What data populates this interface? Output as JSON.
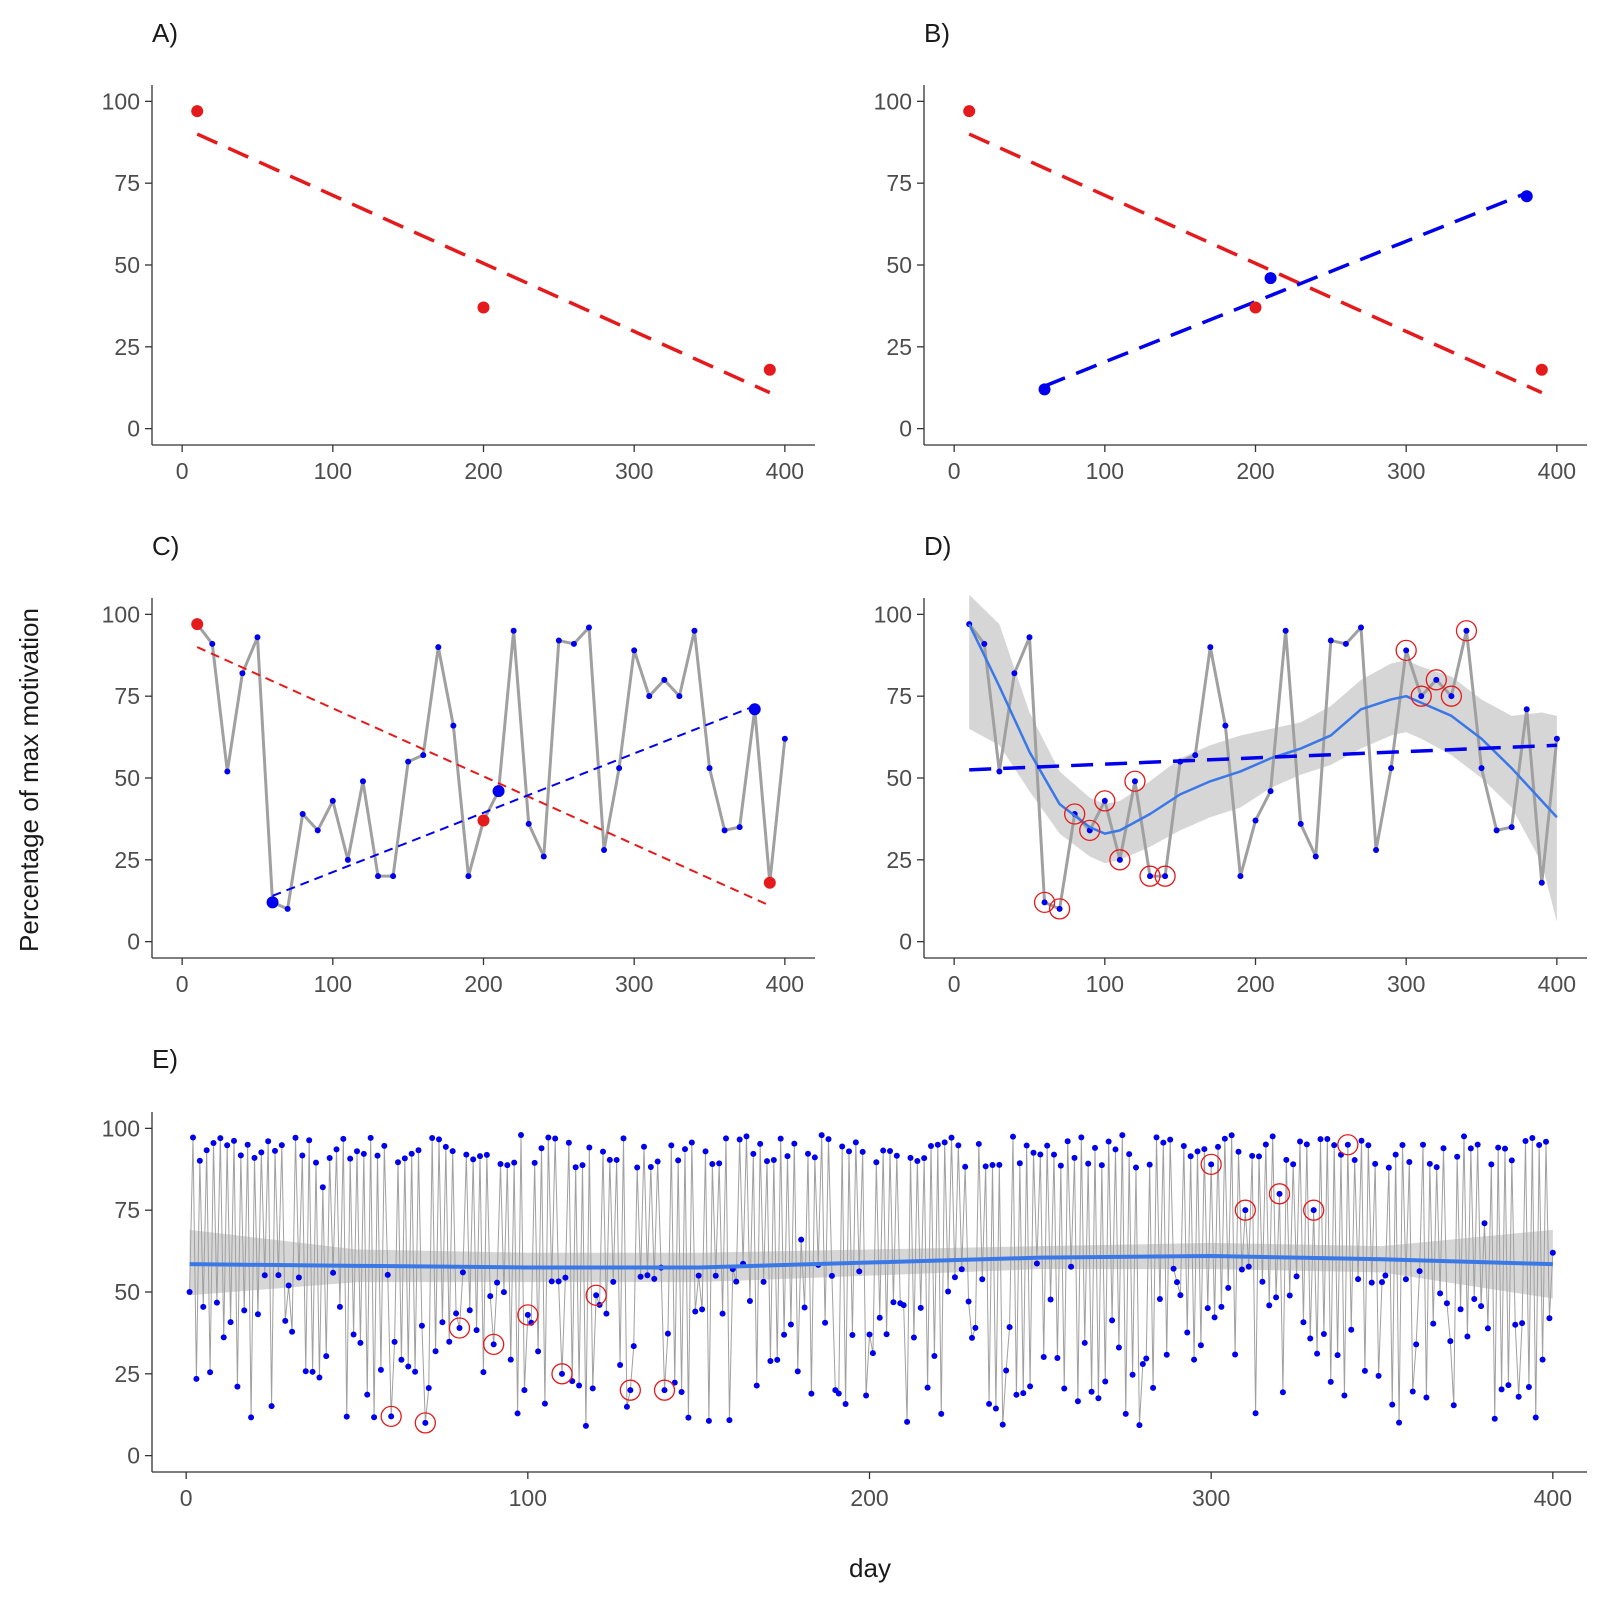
{
  "figure": {
    "ylabel": "Percentage of max motivation",
    "xlabel": "day",
    "colors": {
      "red": "#e41a1c",
      "blue": "#0000ee",
      "smooth": "#3b78e7",
      "series_grey": "#a0a0a0",
      "band_grey": "#c8c8c8",
      "axis": "#333333",
      "tick_text": "#4d4d4d"
    }
  },
  "chart_data": [
    {
      "panel": "A)",
      "type": "scatter",
      "xlim": [
        -20,
        420
      ],
      "ylim": [
        -5,
        105
      ],
      "xticks": [
        "0",
        "100",
        "200",
        "300",
        "400"
      ],
      "yticks": [
        "0",
        "25",
        "50",
        "75",
        "100"
      ],
      "series": [
        {
          "name": "red_points",
          "kind": "points",
          "color": "red",
          "x": [
            10,
            200,
            390
          ],
          "y": [
            97,
            37,
            18
          ]
        },
        {
          "name": "red_trend",
          "kind": "dashed_line",
          "color": "red",
          "x": [
            10,
            390
          ],
          "y": [
            90,
            11
          ]
        }
      ]
    },
    {
      "panel": "B)",
      "type": "scatter",
      "xlim": [
        -20,
        420
      ],
      "ylim": [
        -5,
        105
      ],
      "xticks": [
        "0",
        "100",
        "200",
        "300",
        "400"
      ],
      "yticks": [
        "0",
        "25",
        "50",
        "75",
        "100"
      ],
      "series": [
        {
          "name": "red_points",
          "kind": "points",
          "color": "red",
          "x": [
            10,
            200,
            390
          ],
          "y": [
            97,
            37,
            18
          ]
        },
        {
          "name": "red_trend",
          "kind": "dashed_line",
          "color": "red",
          "x": [
            10,
            390
          ],
          "y": [
            90,
            11
          ]
        },
        {
          "name": "blue_points",
          "kind": "points",
          "color": "blue",
          "x": [
            60,
            210,
            380
          ],
          "y": [
            12,
            46,
            71
          ]
        },
        {
          "name": "blue_trend",
          "kind": "dashed_line",
          "color": "blue",
          "x": [
            60,
            380
          ],
          "y": [
            13,
            72
          ]
        }
      ]
    },
    {
      "panel": "C)",
      "type": "line",
      "xlim": [
        -20,
        420
      ],
      "ylim": [
        -5,
        105
      ],
      "xticks": [
        "0",
        "100",
        "200",
        "300",
        "400"
      ],
      "yticks": [
        "0",
        "25",
        "50",
        "75",
        "100"
      ],
      "series": [
        {
          "name": "daily_series",
          "kind": "grey_line_with_dots",
          "color": "blue",
          "x": [
            10,
            20,
            30,
            40,
            50,
            60,
            70,
            80,
            90,
            100,
            110,
            120,
            130,
            140,
            150,
            160,
            170,
            180,
            190,
            200,
            210,
            220,
            230,
            240,
            250,
            260,
            270,
            280,
            290,
            300,
            310,
            320,
            330,
            340,
            350,
            360,
            370,
            380,
            390,
            400
          ],
          "y": [
            97,
            91,
            52,
            82,
            93,
            12,
            10,
            39,
            34,
            43,
            25,
            49,
            20,
            20,
            55,
            57,
            90,
            66,
            20,
            37,
            46,
            95,
            36,
            26,
            92,
            91,
            96,
            28,
            53,
            89,
            75,
            80,
            75,
            95,
            53,
            34,
            35,
            71,
            18,
            62
          ]
        },
        {
          "name": "red_points",
          "kind": "points",
          "color": "red",
          "x": [
            10,
            200,
            390
          ],
          "y": [
            97,
            37,
            18
          ]
        },
        {
          "name": "red_trend",
          "kind": "fine_dashed_line",
          "color": "red",
          "x": [
            10,
            390
          ],
          "y": [
            90,
            11
          ]
        },
        {
          "name": "blue_points",
          "kind": "points",
          "color": "blue",
          "x": [
            60,
            210,
            380
          ],
          "y": [
            12,
            46,
            71
          ]
        },
        {
          "name": "blue_trend",
          "kind": "fine_dashed_line",
          "color": "blue",
          "x": [
            60,
            380
          ],
          "y": [
            14,
            72
          ]
        }
      ]
    },
    {
      "panel": "D)",
      "type": "line",
      "xlim": [
        -20,
        420
      ],
      "ylim": [
        -5,
        105
      ],
      "xticks": [
        "0",
        "100",
        "200",
        "300",
        "400"
      ],
      "yticks": [
        "0",
        "25",
        "50",
        "75",
        "100"
      ],
      "series": [
        {
          "name": "daily_series",
          "kind": "grey_line_with_dots",
          "color": "blue",
          "x": [
            10,
            20,
            30,
            40,
            50,
            60,
            70,
            80,
            90,
            100,
            110,
            120,
            130,
            140,
            150,
            160,
            170,
            180,
            190,
            200,
            210,
            220,
            230,
            240,
            250,
            260,
            270,
            280,
            290,
            300,
            310,
            320,
            330,
            340,
            350,
            360,
            370,
            380,
            390,
            400
          ],
          "y": [
            97,
            91,
            52,
            82,
            93,
            12,
            10,
            39,
            34,
            43,
            25,
            49,
            20,
            20,
            55,
            57,
            90,
            66,
            20,
            37,
            46,
            95,
            36,
            26,
            92,
            91,
            96,
            28,
            53,
            89,
            75,
            80,
            75,
            95,
            53,
            34,
            35,
            71,
            18,
            62
          ]
        },
        {
          "name": "circled_points",
          "kind": "red_circles",
          "x": [
            60,
            70,
            80,
            90,
            100,
            110,
            120,
            130,
            140,
            300,
            310,
            320,
            330,
            340
          ],
          "y": [
            12,
            10,
            39,
            34,
            43,
            25,
            49,
            20,
            20,
            89,
            75,
            80,
            75,
            95
          ]
        },
        {
          "name": "loess_fit",
          "kind": "smooth",
          "x": [
            10,
            30,
            50,
            70,
            90,
            100,
            110,
            130,
            150,
            170,
            190,
            210,
            230,
            250,
            270,
            290,
            300,
            310,
            330,
            350,
            370,
            390,
            400
          ],
          "y": [
            97,
            78,
            58,
            42,
            35,
            33,
            34,
            39,
            45,
            49,
            52,
            56,
            59,
            63,
            71,
            74,
            75,
            73,
            69,
            62,
            53,
            43,
            38
          ]
        },
        {
          "name": "loess_band",
          "kind": "band",
          "x": [
            10,
            30,
            50,
            70,
            90,
            100,
            110,
            130,
            150,
            170,
            190,
            210,
            230,
            250,
            270,
            290,
            300,
            310,
            330,
            350,
            370,
            390,
            400
          ],
          "lower": [
            65,
            60,
            46,
            33,
            26,
            24,
            25,
            29,
            34,
            38,
            41,
            47,
            51,
            54,
            59,
            63,
            64,
            62,
            57,
            50,
            41,
            24,
            6
          ],
          "upper": [
            106,
            97,
            70,
            52,
            44,
            42,
            43,
            49,
            56,
            60,
            63,
            65,
            67,
            72,
            80,
            85,
            86,
            84,
            81,
            74,
            69,
            70,
            69
          ]
        },
        {
          "name": "linear_fit",
          "kind": "dashed_line",
          "color": "blue",
          "x": [
            10,
            400
          ],
          "y": [
            52.5,
            60
          ]
        }
      ]
    },
    {
      "panel": "E)",
      "type": "line",
      "xlim": [
        -10,
        410
      ],
      "ylim": [
        -5,
        105
      ],
      "xticks": [
        "0",
        "100",
        "200",
        "300",
        "400"
      ],
      "yticks": [
        "0",
        "25",
        "50",
        "75",
        "100"
      ],
      "series": [
        {
          "name": "daily_series",
          "kind": "dense_grey_line_with_dots",
          "color": "blue",
          "x_start": 1,
          "x_end": 400,
          "generated": true,
          "summary_range": [
            9,
            98
          ]
        },
        {
          "name": "circled_points",
          "kind": "red_circles",
          "x": [
            60,
            70,
            80,
            90,
            100,
            110,
            120,
            130,
            140,
            300,
            310,
            320,
            330,
            340
          ],
          "y": [
            12,
            10,
            39,
            34,
            43,
            25,
            49,
            20,
            20,
            89,
            75,
            80,
            75,
            95
          ]
        },
        {
          "name": "loess_fit",
          "kind": "smooth",
          "x": [
            1,
            50,
            100,
            150,
            200,
            250,
            300,
            350,
            400
          ],
          "y": [
            58.5,
            58,
            57.5,
            57.5,
            59,
            60.5,
            61,
            60,
            58.5
          ]
        },
        {
          "name": "loess_band",
          "kind": "band",
          "x": [
            1,
            50,
            100,
            150,
            200,
            250,
            300,
            350,
            400
          ],
          "lower": [
            49,
            53,
            53,
            53,
            55,
            57,
            57,
            56,
            48
          ],
          "upper": [
            69,
            63,
            62,
            62,
            63,
            64,
            65,
            64,
            69
          ]
        }
      ]
    }
  ]
}
